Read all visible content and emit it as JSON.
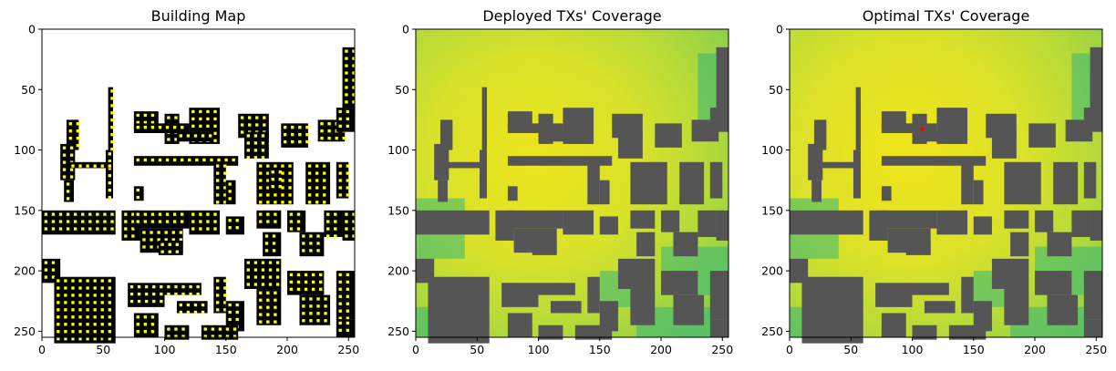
{
  "chart_data": [
    {
      "type": "heatmap",
      "title": "Building Map",
      "xlim": [
        0,
        255
      ],
      "ylim": [
        255,
        0
      ],
      "xticks": [
        "0",
        "50",
        "100",
        "150",
        "200",
        "250"
      ],
      "yticks": [
        "0",
        "50",
        "100",
        "150",
        "200",
        "250"
      ],
      "colors": {
        "building": "#000000",
        "free": "#ffffff",
        "candidate_tx": "#ffff00"
      }
    },
    {
      "type": "heatmap",
      "title": "Deployed TXs' Coverage",
      "xlim": [
        0,
        255
      ],
      "ylim": [
        255,
        0
      ],
      "xticks": [
        "0",
        "50",
        "100",
        "150",
        "200",
        "250"
      ],
      "yticks": [
        "0",
        "50",
        "100",
        "150",
        "200",
        "250"
      ],
      "colormap": "viridis",
      "colors": {
        "high": "#e6e51c",
        "mid": "#a5d63c",
        "low": "#35b779",
        "building": "#555555"
      }
    },
    {
      "type": "heatmap",
      "title": "Optimal TXs' Coverage",
      "xlim": [
        0,
        255
      ],
      "ylim": [
        255,
        0
      ],
      "xticks": [
        "0",
        "50",
        "100",
        "150",
        "200",
        "250"
      ],
      "yticks": [
        "0",
        "50",
        "100",
        "150",
        "200",
        "250"
      ],
      "colormap": "viridis",
      "colors": {
        "high": "#e6e51c",
        "mid": "#a5d63c",
        "low": "#35b779",
        "building": "#555555",
        "tx_marker": "#ff0000"
      },
      "tx_position": {
        "x": 108,
        "y": 83
      }
    }
  ]
}
